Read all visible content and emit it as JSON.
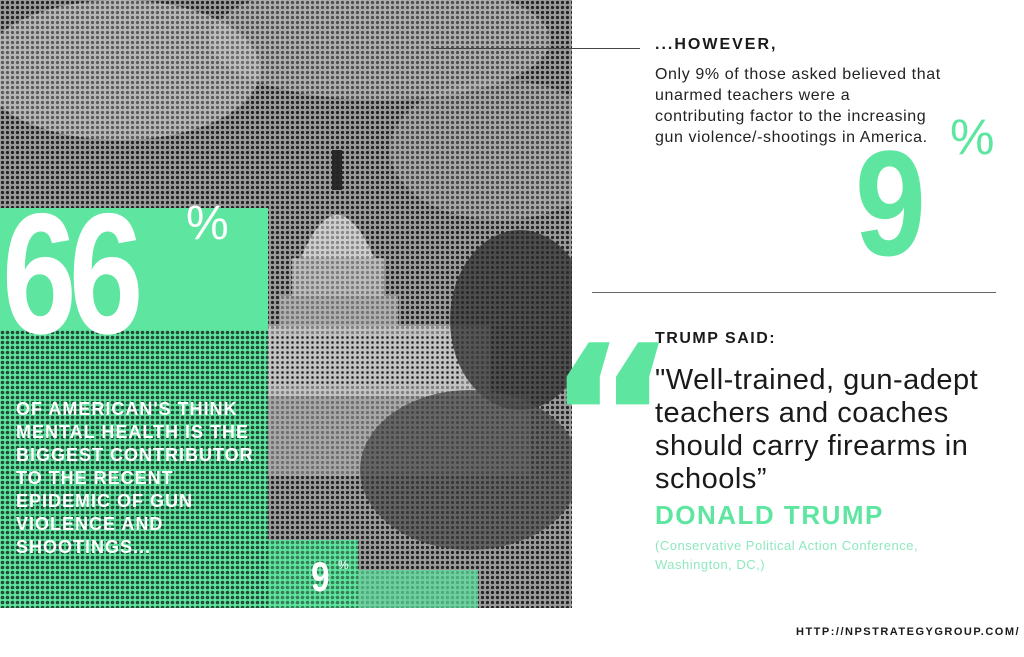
{
  "left_stat": {
    "value": "66",
    "percent": "%",
    "text": "Of American's think mental health is the biggest contributor to the recent epidemic of gun violence and shootings..."
  },
  "photo_stat": {
    "value": "9",
    "percent": "%"
  },
  "however": {
    "heading": "...HOWEVER,",
    "text": "Only 9% of those asked believed that unarmed teachers were a contributing factor to the increasing gun violence/-shootings in America.",
    "value": "9",
    "percent": "%"
  },
  "trump": {
    "heading": "TRUMP SAID:",
    "quote_mark": "“",
    "quote": "\"Well-trained, gun-adept teachers and coaches should carry firearms in schools”",
    "speaker": "DONALD TRUMP",
    "source": "(Conservative Political Action Conference, Washington, DC,)"
  },
  "footer": {
    "url": "HTTP://NPSTRATEGYGROUP.COM/"
  },
  "colors": {
    "accent_green": "#5ee6a0",
    "text_dark": "#1a1a1a",
    "halftone": "#111111"
  }
}
